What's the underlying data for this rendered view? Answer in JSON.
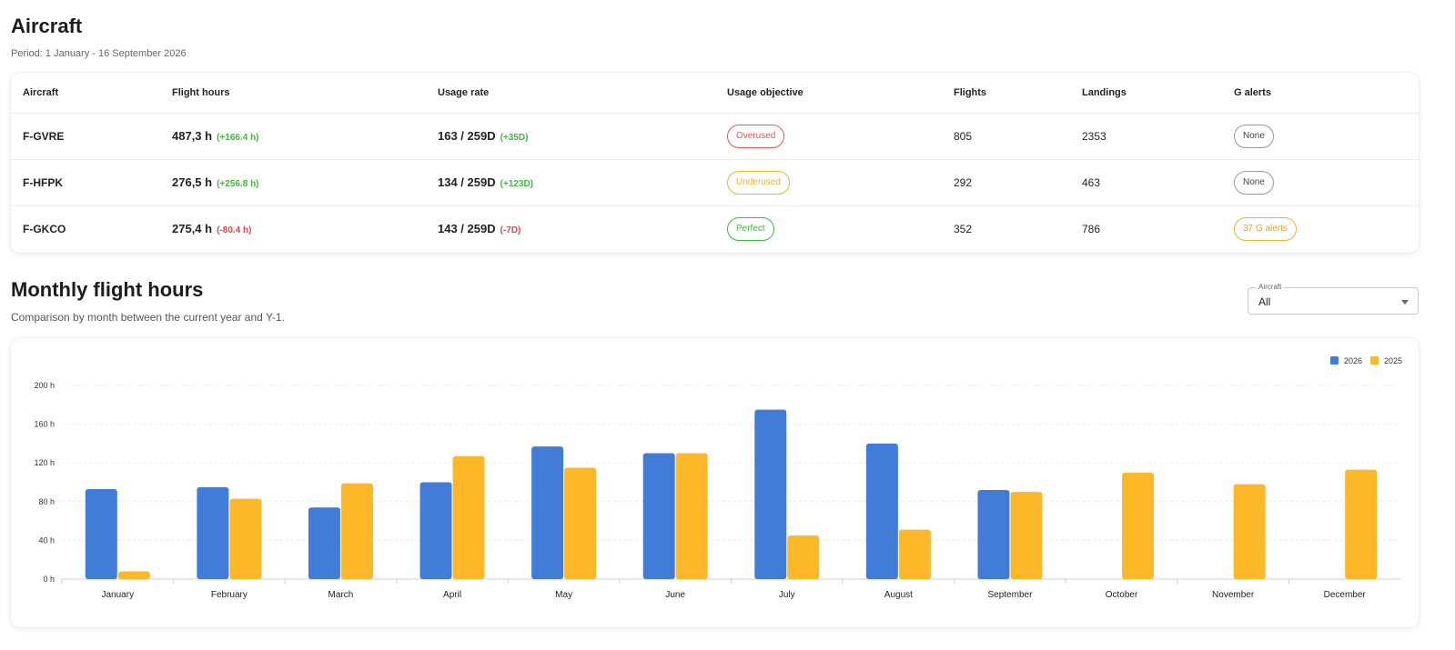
{
  "header": {
    "title": "Aircraft",
    "period": "Period: 1 January - 16 September 2026"
  },
  "table": {
    "columns": [
      "Aircraft",
      "Flight hours",
      "Usage rate",
      "Usage objective",
      "Flights",
      "Landings",
      "G alerts"
    ],
    "rows": [
      {
        "reg": "F-GVRE",
        "hours": "487,3 h",
        "hours_delta": "(+166.4 h)",
        "hours_delta_sign": "pos",
        "usage": "163 / 259D",
        "usage_delta": "(+35D)",
        "usage_delta_sign": "pos",
        "objective": "Overused",
        "objective_kind": "over",
        "flights": "805",
        "landings": "2353",
        "alerts": "None",
        "alerts_kind": "none"
      },
      {
        "reg": "F-HFPK",
        "hours": "276,5 h",
        "hours_delta": "(+256.8 h)",
        "hours_delta_sign": "pos",
        "usage": "134 / 259D",
        "usage_delta": "(+123D)",
        "usage_delta_sign": "pos",
        "objective": "Underused",
        "objective_kind": "under",
        "flights": "292",
        "landings": "463",
        "alerts": "None",
        "alerts_kind": "none"
      },
      {
        "reg": "F-GKCO",
        "hours": "275,4 h",
        "hours_delta": "(-80.4 h)",
        "hours_delta_sign": "neg",
        "usage": "143 / 259D",
        "usage_delta": "(-7D)",
        "usage_delta_sign": "neg",
        "objective": "Perfect",
        "objective_kind": "perfect",
        "flights": "352",
        "landings": "786",
        "alerts": "37 G alerts",
        "alerts_kind": "alert"
      }
    ]
  },
  "monthly": {
    "title": "Monthly flight hours",
    "subtitle": "Comparison by month between the current year and Y-1."
  },
  "filter": {
    "label": "Aircraft",
    "value": "All"
  },
  "chart_data": {
    "type": "bar",
    "categories": [
      "January",
      "February",
      "March",
      "April",
      "May",
      "June",
      "July",
      "August",
      "September",
      "October",
      "November",
      "December"
    ],
    "series": [
      {
        "name": "2026",
        "color": "#417cd9",
        "values": [
          93,
          95,
          74,
          100,
          137,
          130,
          175,
          140,
          92,
          null,
          null,
          null
        ]
      },
      {
        "name": "2025",
        "color": "#fdb827",
        "values": [
          8,
          83,
          99,
          127,
          115,
          130,
          45,
          51,
          90,
          110,
          98,
          113
        ]
      }
    ],
    "yticks": [
      "0 h",
      "40 h",
      "80 h",
      "120 h",
      "160 h",
      "200 h"
    ],
    "ylim": [
      0,
      200
    ],
    "legend_position": "top-right",
    "grid": true
  }
}
